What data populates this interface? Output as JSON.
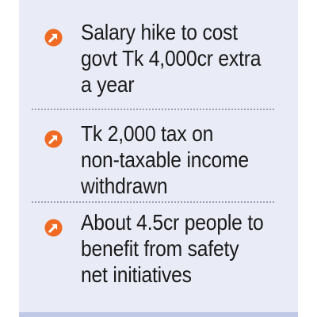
{
  "colors": {
    "panel_background": "#e9ebf6",
    "bullet_accent": "#ef6a23",
    "text": "#1a1a1a",
    "bottom_rule": "#bfc9e6"
  },
  "bullets": [
    {
      "icon": "arrow-up-right-circle-icon",
      "lines": [
        "Salary hike to cost",
        "govt Tk 4,000cr extra",
        "a year"
      ]
    },
    {
      "icon": "arrow-up-right-circle-icon",
      "lines": [
        "Tk 2,000 tax on",
        "non-taxable income",
        "withdrawn"
      ]
    },
    {
      "icon": "arrow-up-right-circle-icon",
      "lines": [
        "About 4.5cr people to",
        "benefit from safety",
        "net initiatives"
      ]
    }
  ]
}
